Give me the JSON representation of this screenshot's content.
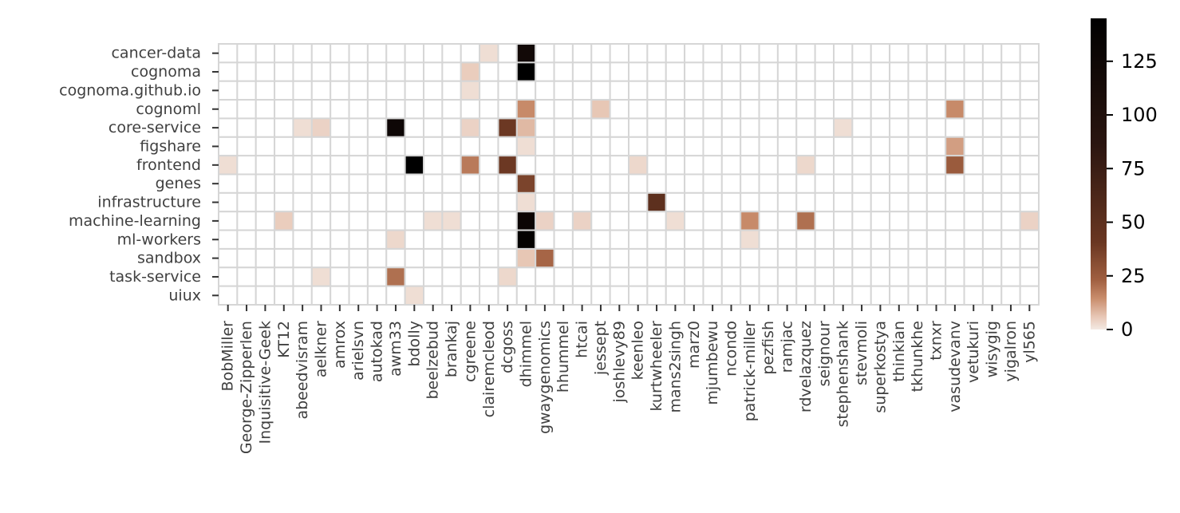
{
  "chart_data": {
    "type": "heatmap",
    "title": "",
    "xlabel": "",
    "ylabel": "",
    "y_categories": [
      "cancer-data",
      "cognoma",
      "cognoma.github.io",
      "cognoml",
      "core-service",
      "figshare",
      "frontend",
      "genes",
      "infrastructure",
      "machine-learning",
      "ml-workers",
      "sandbox",
      "task-service",
      "uiux"
    ],
    "x_categories": [
      "BobMiller",
      "George-Zipperlen",
      "Inquisitive-Geek",
      "KT12",
      "abeedvisram",
      "aelkner",
      "amrox",
      "arielsvn",
      "autokad",
      "awm33",
      "bdolly",
      "beelzebud",
      "brankaj",
      "cgreene",
      "clairemcleod",
      "dcgoss",
      "dhimmel",
      "gwaygenomics",
      "hhummel",
      "htcai",
      "jessept",
      "joshlevy89",
      "keenleo",
      "kurtwheeler",
      "mans2singh",
      "marz0",
      "mjumbewu",
      "ncondo",
      "patrick-miller",
      "pezfish",
      "ramjac",
      "rdvelazquez",
      "seignour",
      "stephenshank",
      "stevmoli",
      "superkostya",
      "thinkian",
      "tkhunkhe",
      "txnxr",
      "vasudevanv",
      "vetukuri",
      "wisygig",
      "yigalron",
      "yl565"
    ],
    "values": [
      [
        0,
        0,
        0,
        0,
        0,
        0,
        0,
        0,
        0,
        0,
        0,
        0,
        0,
        0,
        2,
        0,
        120,
        0,
        0,
        0,
        0,
        0,
        0,
        0,
        0,
        0,
        0,
        0,
        0,
        0,
        0,
        0,
        0,
        0,
        0,
        0,
        0,
        0,
        0,
        0,
        0,
        0,
        0,
        0
      ],
      [
        0,
        0,
        0,
        0,
        0,
        0,
        0,
        0,
        0,
        0,
        0,
        0,
        0,
        5,
        0,
        0,
        145,
        0,
        0,
        0,
        0,
        0,
        0,
        0,
        0,
        0,
        0,
        0,
        0,
        0,
        0,
        0,
        0,
        0,
        0,
        0,
        0,
        0,
        0,
        0,
        0,
        0,
        0,
        0
      ],
      [
        0,
        0,
        0,
        0,
        0,
        0,
        0,
        0,
        0,
        0,
        0,
        0,
        0,
        2,
        0,
        0,
        0,
        0,
        0,
        0,
        0,
        0,
        0,
        0,
        0,
        0,
        0,
        0,
        0,
        0,
        0,
        0,
        0,
        0,
        0,
        0,
        0,
        0,
        0,
        0,
        0,
        0,
        0,
        0
      ],
      [
        0,
        0,
        0,
        0,
        0,
        0,
        0,
        0,
        0,
        0,
        0,
        0,
        0,
        0,
        0,
        0,
        15,
        0,
        0,
        0,
        6,
        0,
        0,
        0,
        0,
        0,
        0,
        0,
        0,
        0,
        0,
        0,
        0,
        0,
        0,
        0,
        0,
        0,
        0,
        15,
        0,
        0,
        0,
        0
      ],
      [
        0,
        0,
        0,
        0,
        2,
        4,
        0,
        0,
        0,
        125,
        0,
        0,
        0,
        4,
        0,
        40,
        8,
        0,
        0,
        0,
        0,
        0,
        0,
        0,
        0,
        0,
        0,
        0,
        0,
        0,
        0,
        0,
        0,
        2,
        0,
        0,
        0,
        0,
        0,
        0,
        0,
        0,
        0,
        0
      ],
      [
        0,
        0,
        0,
        0,
        0,
        0,
        0,
        0,
        0,
        0,
        0,
        0,
        0,
        0,
        0,
        0,
        2,
        0,
        0,
        0,
        0,
        0,
        0,
        0,
        0,
        0,
        0,
        0,
        0,
        0,
        0,
        0,
        0,
        0,
        0,
        0,
        0,
        0,
        0,
        12,
        0,
        0,
        0,
        0
      ],
      [
        2,
        0,
        0,
        0,
        0,
        0,
        0,
        0,
        0,
        0,
        145,
        0,
        0,
        18,
        0,
        40,
        0,
        0,
        0,
        0,
        0,
        0,
        3,
        0,
        0,
        0,
        0,
        0,
        0,
        0,
        0,
        3,
        0,
        0,
        0,
        0,
        0,
        0,
        0,
        25,
        0,
        0,
        0,
        0
      ],
      [
        0,
        0,
        0,
        0,
        0,
        0,
        0,
        0,
        0,
        0,
        0,
        0,
        0,
        0,
        0,
        0,
        35,
        0,
        0,
        0,
        0,
        0,
        0,
        0,
        0,
        0,
        0,
        0,
        0,
        0,
        0,
        0,
        0,
        0,
        0,
        0,
        0,
        0,
        0,
        0,
        0,
        0,
        0,
        0
      ],
      [
        0,
        0,
        0,
        0,
        0,
        0,
        0,
        0,
        0,
        0,
        0,
        0,
        0,
        0,
        0,
        0,
        2,
        0,
        0,
        0,
        0,
        0,
        0,
        50,
        0,
        0,
        0,
        0,
        0,
        0,
        0,
        0,
        0,
        0,
        0,
        0,
        0,
        0,
        0,
        0,
        0,
        0,
        0,
        0
      ],
      [
        0,
        0,
        0,
        5,
        0,
        0,
        0,
        0,
        0,
        0,
        0,
        2,
        2,
        0,
        0,
        0,
        130,
        4,
        0,
        4,
        0,
        0,
        0,
        0,
        2,
        0,
        0,
        0,
        15,
        0,
        0,
        20,
        0,
        0,
        0,
        0,
        0,
        0,
        0,
        0,
        0,
        0,
        0,
        4
      ],
      [
        0,
        0,
        0,
        0,
        0,
        0,
        0,
        0,
        0,
        3,
        0,
        0,
        0,
        0,
        0,
        0,
        140,
        0,
        0,
        0,
        0,
        0,
        0,
        0,
        0,
        0,
        0,
        0,
        2,
        0,
        0,
        0,
        0,
        0,
        0,
        0,
        0,
        0,
        0,
        0,
        0,
        0,
        0,
        0
      ],
      [
        0,
        0,
        0,
        0,
        0,
        0,
        0,
        0,
        0,
        0,
        0,
        0,
        0,
        0,
        0,
        0,
        6,
        22,
        0,
        0,
        0,
        0,
        0,
        0,
        0,
        0,
        0,
        0,
        0,
        0,
        0,
        0,
        0,
        0,
        0,
        0,
        0,
        0,
        0,
        0,
        0,
        0,
        0,
        0
      ],
      [
        0,
        0,
        0,
        0,
        0,
        2,
        0,
        0,
        0,
        20,
        0,
        0,
        0,
        0,
        0,
        3,
        0,
        0,
        0,
        0,
        0,
        0,
        0,
        0,
        0,
        0,
        0,
        0,
        0,
        0,
        0,
        0,
        0,
        0,
        0,
        0,
        0,
        0,
        0,
        0,
        0,
        0,
        0,
        0
      ],
      [
        0,
        0,
        0,
        0,
        0,
        0,
        0,
        0,
        0,
        0,
        2,
        0,
        0,
        0,
        0,
        0,
        0,
        0,
        0,
        0,
        0,
        0,
        0,
        0,
        0,
        0,
        0,
        0,
        0,
        0,
        0,
        0,
        0,
        0,
        0,
        0,
        0,
        0,
        0,
        0,
        0,
        0,
        0,
        0
      ]
    ],
    "vmin": 0,
    "vmax": 145,
    "colorbar": {
      "ticks": [
        0,
        25,
        50,
        75,
        100,
        125
      ],
      "tick_labels": [
        "0",
        "25",
        "50",
        "75",
        "100",
        "125"
      ]
    },
    "grid": true,
    "colormap": [
      "#f3e9e3",
      "#e8c8b7",
      "#c98d6c",
      "#a05f40",
      "#6a3722",
      "#2a1510",
      "#000000"
    ]
  }
}
